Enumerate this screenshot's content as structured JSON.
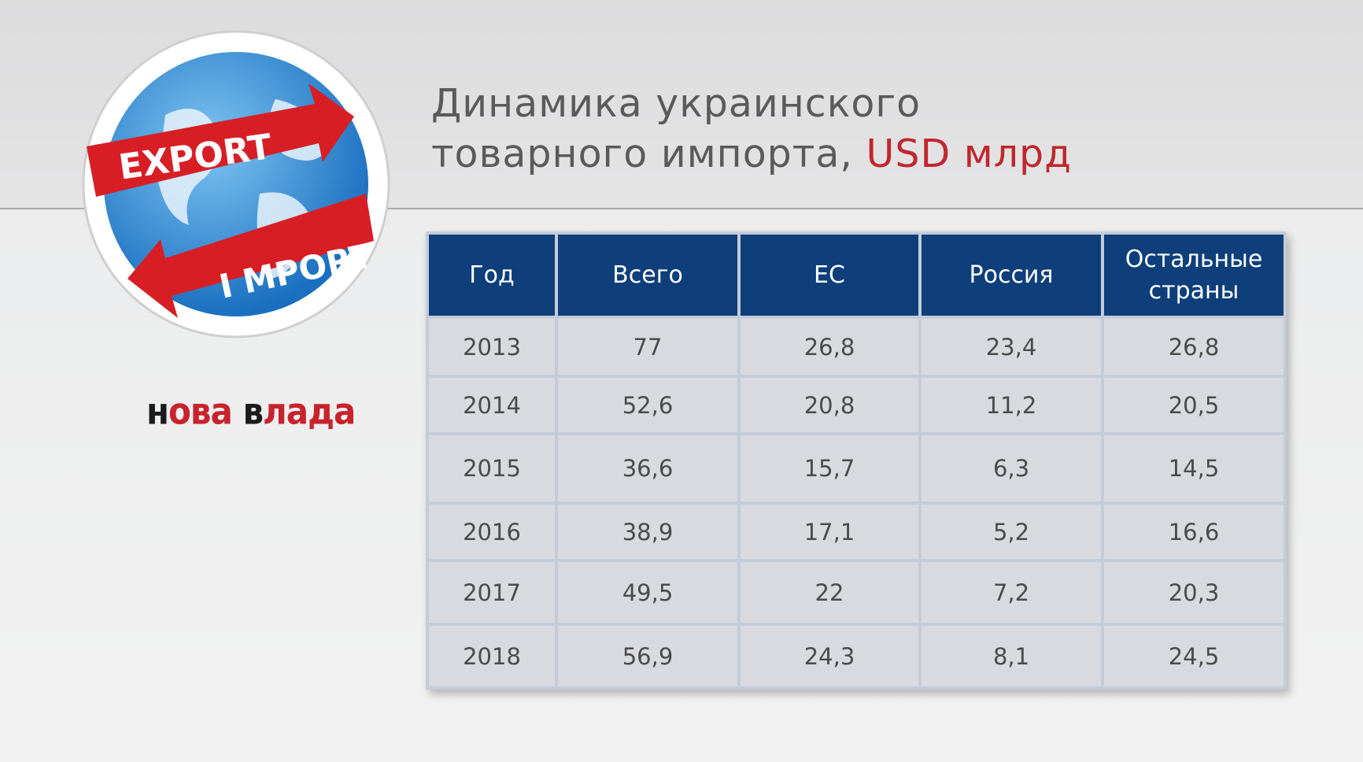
{
  "header": {
    "title_line1": "Динамика украинского",
    "title_line2": "товарного импорта,",
    "title_unit": "USD млрд"
  },
  "logo": {
    "export": "EXPORT",
    "import": "I MPORT",
    "brand": [
      "н",
      "ова",
      "в",
      "лада"
    ]
  },
  "table": {
    "header": [
      "Год",
      "Всего",
      "ЕС",
      "Россия",
      "Остальные страны"
    ],
    "rows": [
      [
        "2013",
        "77",
        "26,8",
        "23,4",
        "26,8"
      ],
      [
        "2014",
        "52,6",
        "20,8",
        "11,2",
        "20,5"
      ],
      [
        "2015",
        "36,6",
        "15,7",
        "6,3",
        "14,5"
      ],
      [
        "2016",
        "38,9",
        "17,1",
        "5,2",
        "16,6"
      ],
      [
        "2017",
        "49,5",
        "22",
        "7,2",
        "20,3"
      ],
      [
        "2018",
        "56,9",
        "24,3",
        "8,1",
        "24,5"
      ]
    ]
  }
}
